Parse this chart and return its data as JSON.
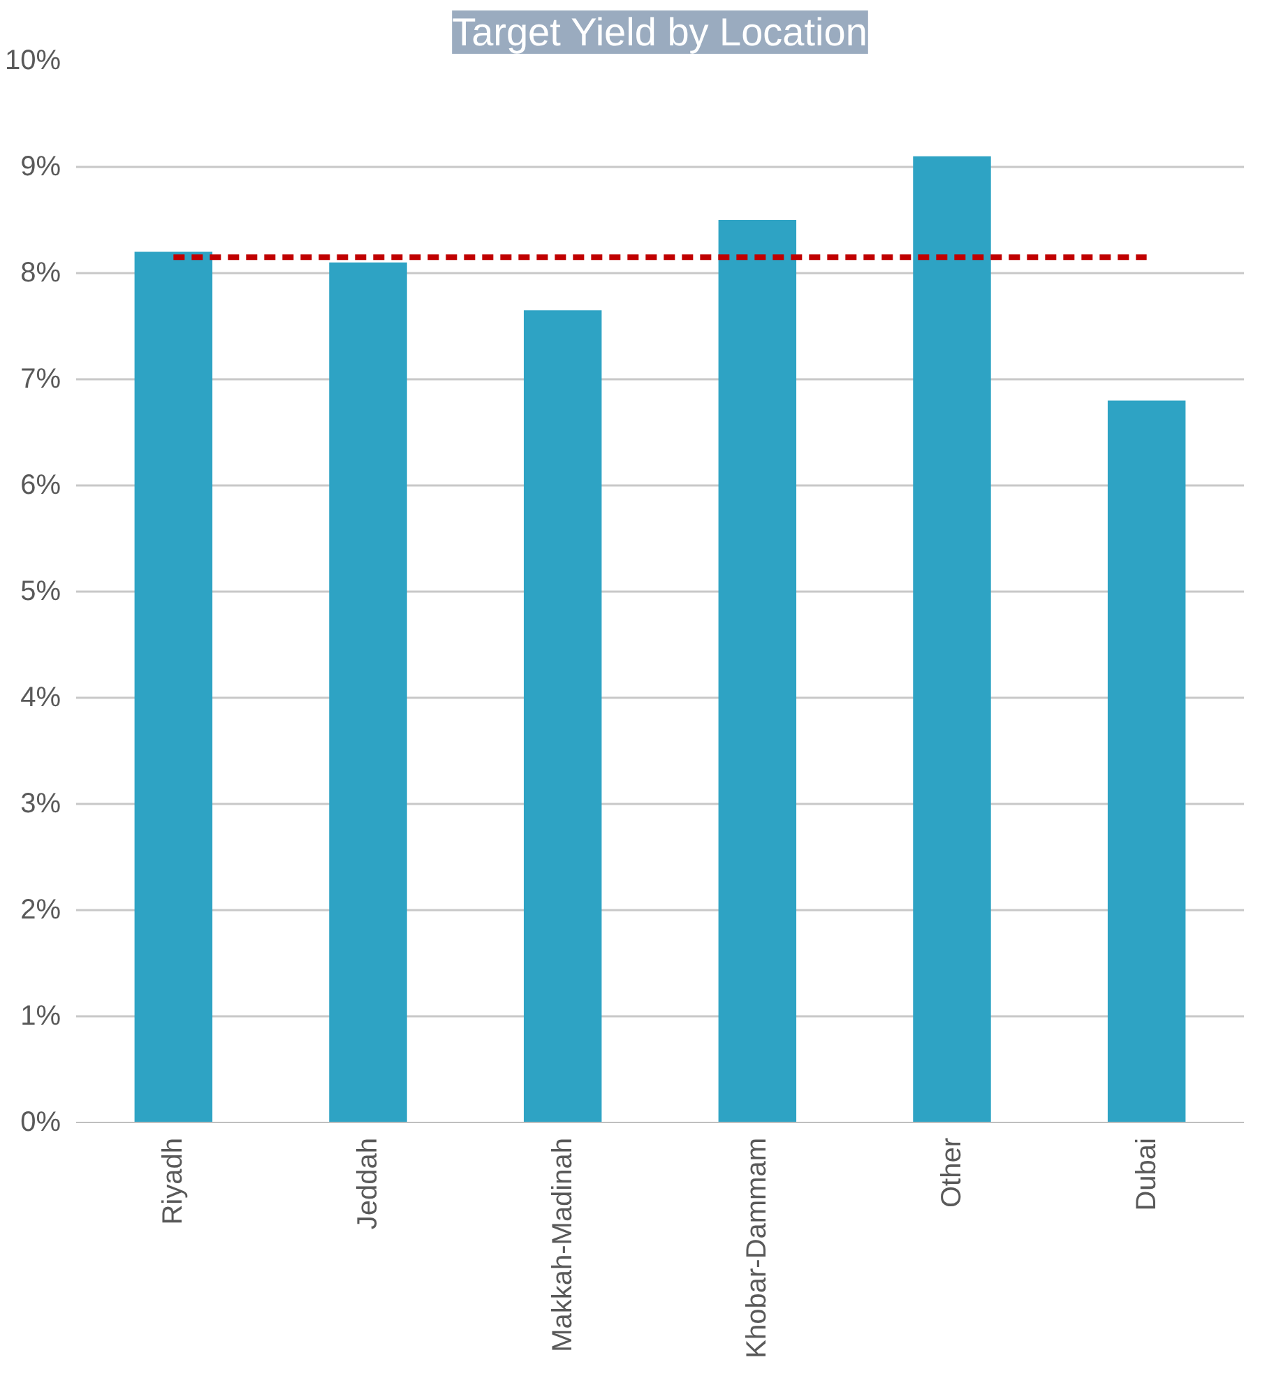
{
  "chart_data": {
    "type": "bar",
    "title": "Target Yield by Location",
    "categories": [
      "Riyadh",
      "Jeddah",
      "Makkah-Madinah",
      "Khobar-Dammam",
      "Other",
      "Dubai"
    ],
    "series": [
      {
        "color": "#2ea3c4",
        "values": [
          8.2,
          8.1,
          7.65,
          8.5,
          9.1,
          6.8
        ]
      },
      {
        "type": "line",
        "color": "#c00000",
        "line_style": "dashed",
        "marker": "none",
        "values": [
          8.15,
          8.15,
          8.15,
          8.15,
          8.15,
          8.15
        ]
      }
    ],
    "ylim": [
      0,
      10
    ],
    "yticks": [
      {
        "value": 0,
        "label": "0%"
      },
      {
        "value": 1,
        "label": "1%"
      },
      {
        "value": 2,
        "label": "2%"
      },
      {
        "value": 3,
        "label": "3%"
      },
      {
        "value": 4,
        "label": "4%"
      },
      {
        "value": 5,
        "label": "5%"
      },
      {
        "value": 6,
        "label": "6%"
      },
      {
        "value": 7,
        "label": "7%"
      },
      {
        "value": 8,
        "label": "8%"
      },
      {
        "value": 9,
        "label": "9%"
      },
      {
        "value": 10,
        "label": "10%"
      }
    ],
    "grid": "y"
  }
}
